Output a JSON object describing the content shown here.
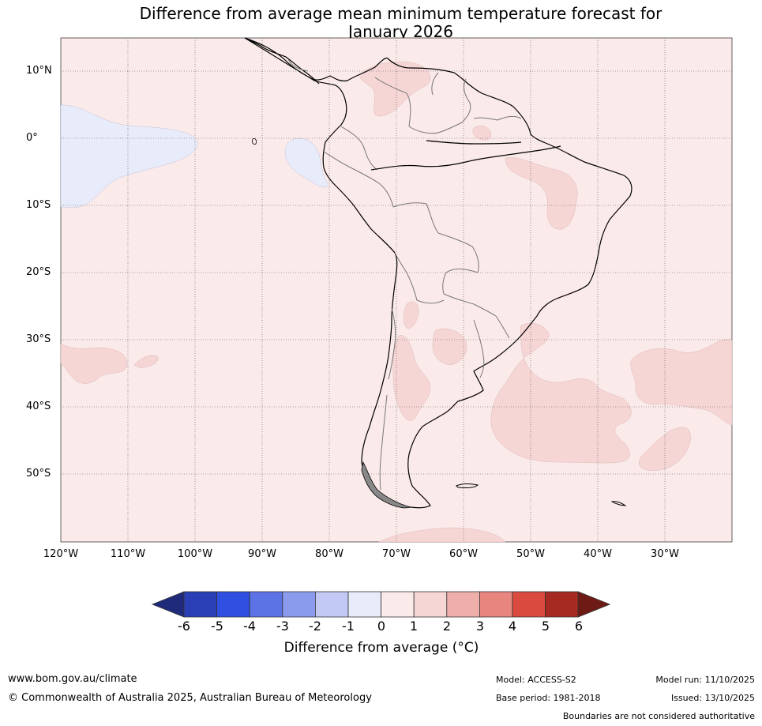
{
  "title_line1": "Difference from average mean minimum temperature forecast for",
  "title_line2": "January 2026",
  "latitude_labels": [
    "10°N",
    "0°",
    "10°S",
    "20°S",
    "30°S",
    "40°S",
    "50°S"
  ],
  "longitude_labels": [
    "120°W",
    "110°W",
    "100°W",
    "90°W",
    "80°W",
    "70°W",
    "60°W",
    "50°W",
    "40°W",
    "30°W"
  ],
  "colorbar": {
    "ticks": [
      "-6",
      "-5",
      "-4",
      "-3",
      "-2",
      "-1",
      "0",
      "1",
      "2",
      "3",
      "4",
      "5",
      "6"
    ],
    "colors": [
      "#1f2a7a",
      "#2a3fb5",
      "#2f50e0",
      "#5c73e6",
      "#8a9bee",
      "#c2c9f4",
      "#e8ebfa",
      "#fbeaea",
      "#f6d5d5",
      "#eeafaa",
      "#e8857e",
      "#db4a3e",
      "#a62a22",
      "#6e1a15"
    ],
    "label_text": "Difference from average",
    "label_unit": "(°C)"
  },
  "map": {
    "background_category_color": "#fbeaea",
    "warm_patch_color": "#f6d5d5",
    "cool_patch_color": "#e8ebfa"
  },
  "footer": {
    "website": "www.bom.gov.au/climate",
    "copyright": "© Commonwealth of Australia 2025, Australian Bureau of Meteorology",
    "model": "Model: ACCESS-S2",
    "base_period": "Base period: 1981-2018",
    "model_run": "Model run: 11/10/2025",
    "issued": "Issued: 13/10/2025",
    "disclaimer": "Boundaries are not considered authoritative"
  }
}
